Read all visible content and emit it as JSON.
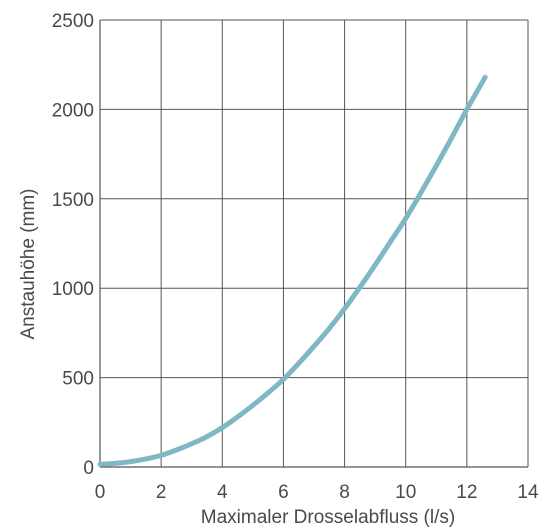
{
  "chart_data": {
    "type": "line",
    "xlabel": "Maximaler Drosselabfluss (l/s)",
    "ylabel": "Anstauhöhe (mm)",
    "xlim": [
      0,
      14
    ],
    "ylim": [
      0,
      2500
    ],
    "xticks": [
      "0",
      "2",
      "4",
      "6",
      "8",
      "10",
      "12",
      "14"
    ],
    "yticks": [
      "0",
      "500",
      "1000",
      "1500",
      "2000",
      "2500"
    ],
    "grid": true,
    "series": [
      {
        "color": "#7fb8c4",
        "x": [
          0,
          0.5,
          1,
          1.5,
          2,
          2.5,
          3,
          3.5,
          4,
          4.5,
          5,
          5.5,
          6,
          6.5,
          7,
          7.5,
          8,
          8.5,
          9,
          9.5,
          10,
          10.5,
          11,
          11.5,
          12,
          12.6
        ],
        "y": [
          15,
          20,
          30,
          45,
          65,
          95,
          130,
          170,
          220,
          280,
          345,
          415,
          490,
          580,
          675,
          775,
          885,
          1005,
          1130,
          1260,
          1390,
          1535,
          1685,
          1840,
          2000,
          2180
        ]
      }
    ]
  }
}
